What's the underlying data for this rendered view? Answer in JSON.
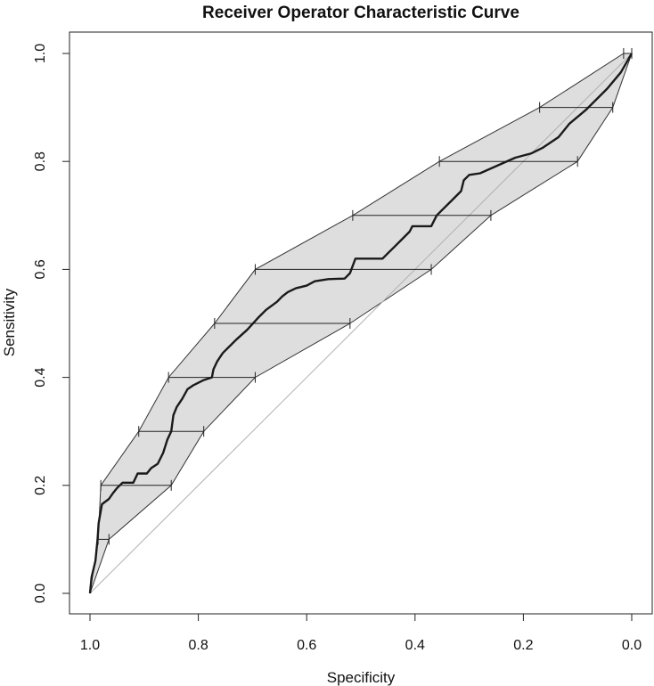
{
  "chart_data": {
    "type": "line",
    "title": "Receiver Operator Characteristic Curve",
    "xlabel": "Specificity",
    "ylabel": "Sensitivity",
    "xlim": [
      1.0,
      0.0
    ],
    "ylim": [
      0.0,
      1.0
    ],
    "x_ticks": [
      "1.0",
      "0.8",
      "0.6",
      "0.4",
      "0.2",
      "0.0"
    ],
    "y_ticks": [
      "0.0",
      "0.2",
      "0.4",
      "0.6",
      "0.8",
      "1.0"
    ],
    "grid": false,
    "legend": "none",
    "colors": {
      "curve": "#1a1a1a",
      "band_fill": "#dedede",
      "band_edge": "#333333",
      "diagonal": "#b0b0b0",
      "error_bars": "#222222"
    },
    "series": [
      {
        "points": [
          [
            1.0,
            0.0
          ],
          [
            0.997,
            0.03
          ],
          [
            0.99,
            0.06
          ],
          [
            0.986,
            0.1
          ],
          [
            0.984,
            0.13
          ],
          [
            0.978,
            0.165
          ],
          [
            0.965,
            0.175
          ],
          [
            0.958,
            0.185
          ],
          [
            0.95,
            0.195
          ],
          [
            0.94,
            0.205
          ],
          [
            0.92,
            0.205
          ],
          [
            0.912,
            0.222
          ],
          [
            0.895,
            0.222
          ],
          [
            0.887,
            0.232
          ],
          [
            0.875,
            0.24
          ],
          [
            0.865,
            0.26
          ],
          [
            0.857,
            0.285
          ],
          [
            0.85,
            0.3
          ],
          [
            0.846,
            0.33
          ],
          [
            0.84,
            0.345
          ],
          [
            0.83,
            0.36
          ],
          [
            0.82,
            0.378
          ],
          [
            0.81,
            0.385
          ],
          [
            0.79,
            0.395
          ],
          [
            0.775,
            0.4
          ],
          [
            0.772,
            0.415
          ],
          [
            0.765,
            0.43
          ],
          [
            0.755,
            0.445
          ],
          [
            0.73,
            0.47
          ],
          [
            0.71,
            0.488
          ],
          [
            0.69,
            0.51
          ],
          [
            0.675,
            0.525
          ],
          [
            0.655,
            0.54
          ],
          [
            0.645,
            0.55
          ],
          [
            0.635,
            0.558
          ],
          [
            0.62,
            0.565
          ],
          [
            0.6,
            0.57
          ],
          [
            0.585,
            0.578
          ],
          [
            0.56,
            0.582
          ],
          [
            0.53,
            0.583
          ],
          [
            0.52,
            0.593
          ],
          [
            0.51,
            0.62
          ],
          [
            0.46,
            0.62
          ],
          [
            0.45,
            0.63
          ],
          [
            0.44,
            0.64
          ],
          [
            0.425,
            0.655
          ],
          [
            0.41,
            0.67
          ],
          [
            0.405,
            0.68
          ],
          [
            0.37,
            0.68
          ],
          [
            0.36,
            0.7
          ],
          [
            0.35,
            0.71
          ],
          [
            0.33,
            0.73
          ],
          [
            0.315,
            0.745
          ],
          [
            0.31,
            0.765
          ],
          [
            0.3,
            0.775
          ],
          [
            0.28,
            0.778
          ],
          [
            0.235,
            0.798
          ],
          [
            0.215,
            0.807
          ],
          [
            0.185,
            0.815
          ],
          [
            0.165,
            0.825
          ],
          [
            0.135,
            0.845
          ],
          [
            0.115,
            0.87
          ],
          [
            0.085,
            0.895
          ],
          [
            0.045,
            0.935
          ],
          [
            0.02,
            0.965
          ],
          [
            0.0,
            1.0
          ]
        ]
      }
    ],
    "confidence_band": {
      "upper": [
        [
          1.0,
          0.0
        ],
        [
          0.985,
          0.1
        ],
        [
          0.98,
          0.2
        ],
        [
          0.91,
          0.3
        ],
        [
          0.855,
          0.4
        ],
        [
          0.77,
          0.5
        ],
        [
          0.695,
          0.6
        ],
        [
          0.515,
          0.7
        ],
        [
          0.355,
          0.8
        ],
        [
          0.17,
          0.9
        ],
        [
          0.015,
          1.0
        ],
        [
          0.0,
          1.0
        ]
      ],
      "lower": [
        [
          1.0,
          0.0
        ],
        [
          0.965,
          0.1
        ],
        [
          0.85,
          0.2
        ],
        [
          0.79,
          0.3
        ],
        [
          0.695,
          0.4
        ],
        [
          0.52,
          0.5
        ],
        [
          0.37,
          0.6
        ],
        [
          0.26,
          0.7
        ],
        [
          0.1,
          0.8
        ],
        [
          0.035,
          0.9
        ],
        [
          0.0,
          1.0
        ]
      ],
      "error_bars": [
        {
          "y": 0.1,
          "x_left": 0.985,
          "x_right": 0.965
        },
        {
          "y": 0.2,
          "x_left": 0.98,
          "x_right": 0.85
        },
        {
          "y": 0.3,
          "x_left": 0.91,
          "x_right": 0.79
        },
        {
          "y": 0.4,
          "x_left": 0.855,
          "x_right": 0.695
        },
        {
          "y": 0.5,
          "x_left": 0.77,
          "x_right": 0.52
        },
        {
          "y": 0.6,
          "x_left": 0.695,
          "x_right": 0.37
        },
        {
          "y": 0.7,
          "x_left": 0.515,
          "x_right": 0.26
        },
        {
          "y": 0.8,
          "x_left": 0.355,
          "x_right": 0.1
        },
        {
          "y": 0.9,
          "x_left": 0.17,
          "x_right": 0.035
        },
        {
          "y": 1.0,
          "x_left": 0.015,
          "x_right": 0.0
        }
      ]
    }
  }
}
